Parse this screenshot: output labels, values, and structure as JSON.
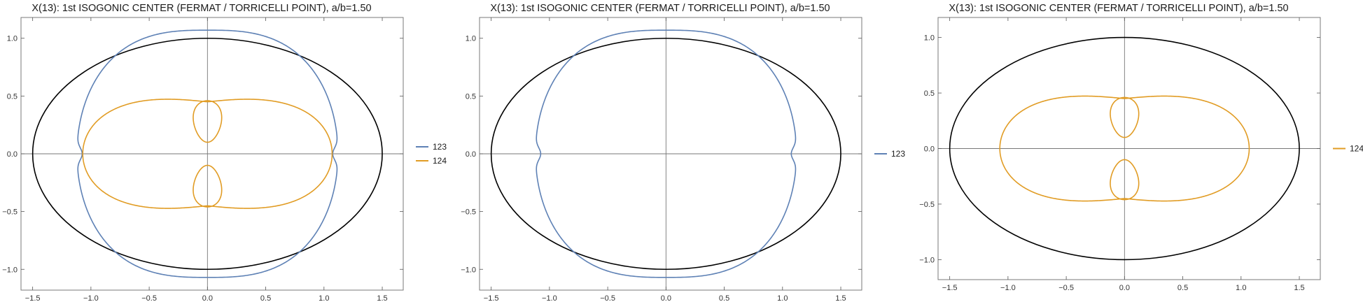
{
  "chart_data": [
    {
      "type": "line",
      "title": "X(13): 1st ISOGONIC CENTER (FERMAT / TORRICELLI POINT), a/b=1.50",
      "xlabel": "",
      "ylabel": "",
      "xlim": [
        -1.6,
        1.68
      ],
      "ylim": [
        -1.18,
        1.18
      ],
      "x_ticks": [
        -1.5,
        -1.0,
        -0.5,
        0.0,
        0.5,
        1.0,
        1.5
      ],
      "y_ticks": [
        -1.0,
        -0.5,
        0.0,
        0.5,
        1.0
      ],
      "x_tick_labels": [
        "−1.5",
        "−1.0",
        "−0.5",
        "0.0",
        "0.5",
        "1.0",
        "1.5"
      ],
      "y_tick_labels": [
        "−1.0",
        "−0.5",
        "0.0",
        "0.5",
        "1.0"
      ],
      "ellipse": {
        "a": 1.5,
        "b": 1.0
      },
      "grid": false,
      "axes_at_origin": true,
      "legend_position": "right",
      "series": [
        {
          "name": "123",
          "color": "#5e81b5",
          "extent": {
            "x_max": 1.08,
            "y_max": 1.07,
            "x_waist": 1.12,
            "y_top_pinch": 0.0
          }
        },
        {
          "name": "124",
          "color": "#e19c24",
          "extent": {
            "x_max": 1.07,
            "y_max": 0.6,
            "inner_loop_y": [
              0.1,
              0.46
            ]
          }
        }
      ]
    },
    {
      "type": "line",
      "title": "X(13): 1st ISOGONIC CENTER (FERMAT / TORRICELLI POINT), a/b=1.50",
      "xlabel": "",
      "ylabel": "",
      "xlim": [
        -1.6,
        1.68
      ],
      "ylim": [
        -1.18,
        1.18
      ],
      "x_ticks": [
        -1.5,
        -1.0,
        -0.5,
        0.0,
        0.5,
        1.0,
        1.5
      ],
      "y_ticks": [
        -1.0,
        -0.5,
        0.0,
        0.5,
        1.0
      ],
      "x_tick_labels": [
        "−1.5",
        "−1.0",
        "−0.5",
        "0.0",
        "0.5",
        "1.0",
        "1.5"
      ],
      "y_tick_labels": [
        "−1.0",
        "−0.5",
        "0.0",
        "0.5",
        "1.0"
      ],
      "ellipse": {
        "a": 1.5,
        "b": 1.0
      },
      "grid": false,
      "axes_at_origin": true,
      "legend_position": "right",
      "series": [
        {
          "name": "123",
          "color": "#5e81b5",
          "extent": {
            "x_max": 1.08,
            "y_max": 1.07,
            "x_waist": 1.12
          }
        }
      ]
    },
    {
      "type": "line",
      "title": "X(13): 1st ISOGONIC CENTER (FERMAT / TORRICELLI POINT), a/b=1.50",
      "xlabel": "",
      "ylabel": "",
      "xlim": [
        -1.6,
        1.68
      ],
      "ylim": [
        -1.18,
        1.18
      ],
      "x_ticks": [
        -1.5,
        -1.0,
        -0.5,
        0.0,
        0.5,
        1.0,
        1.5
      ],
      "y_ticks": [
        -1.0,
        -0.5,
        0.0,
        0.5,
        1.0
      ],
      "x_tick_labels": [
        "−1.5",
        "−1.0",
        "−0.5",
        "0.0",
        "0.5",
        "1.0",
        "1.5"
      ],
      "y_tick_labels": [
        "−1.0",
        "−0.5",
        "0.0",
        "0.5",
        "1.0"
      ],
      "ellipse": {
        "a": 1.5,
        "b": 1.0
      },
      "grid": false,
      "axes_at_origin": true,
      "legend_position": "right",
      "series": [
        {
          "name": "124",
          "color": "#e19c24",
          "extent": {
            "x_max": 1.07,
            "y_max": 0.6,
            "inner_loop_y": [
              0.1,
              0.46
            ]
          }
        }
      ]
    }
  ],
  "colors": {
    "ellipse": "#000000",
    "axis": "#777777",
    "frame": "#7a7a7a"
  }
}
